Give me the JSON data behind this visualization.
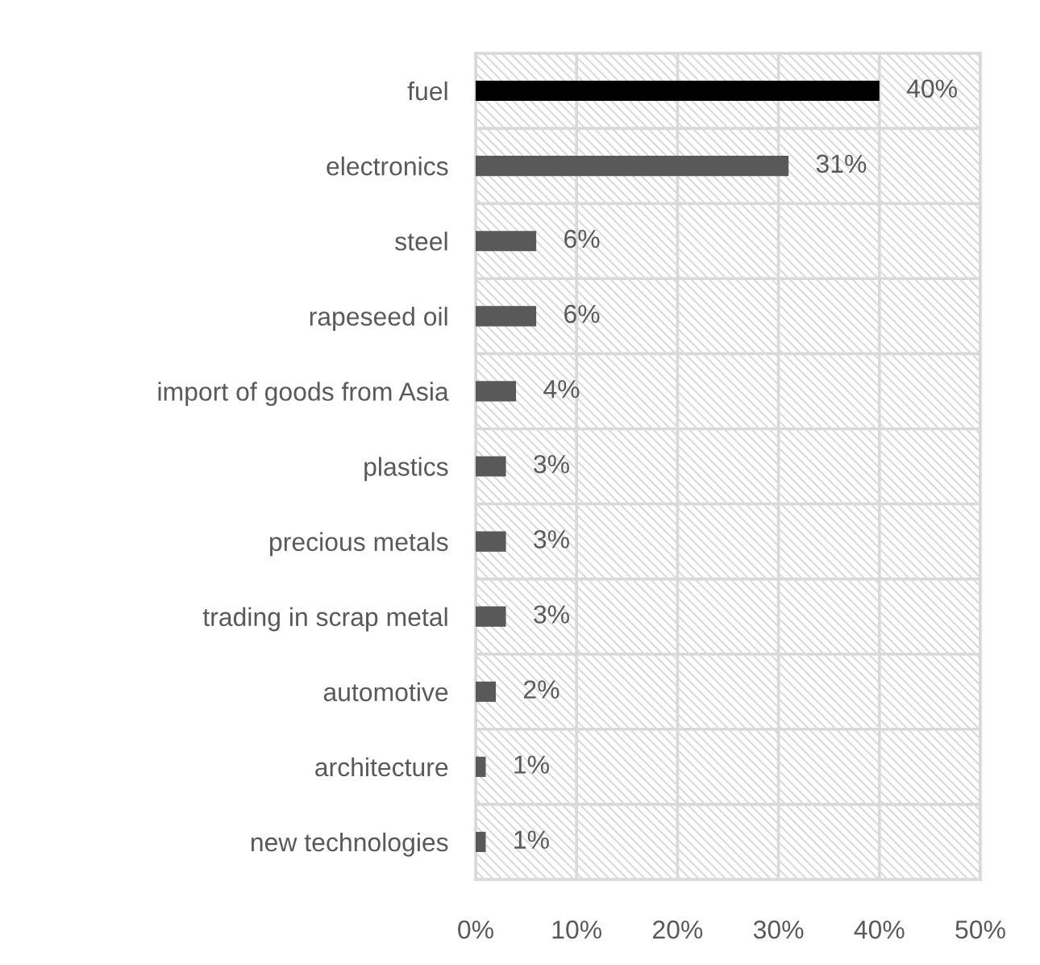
{
  "chart_data": {
    "type": "bar",
    "orientation": "horizontal",
    "categories": [
      "fuel",
      "electronics",
      "steel",
      "rapeseed oil",
      "import of goods from Asia",
      "plastics",
      "precious metals",
      "trading in scrap metal",
      "automotive",
      "architecture",
      "new technologies"
    ],
    "values": [
      40,
      31,
      6,
      6,
      4,
      3,
      3,
      3,
      2,
      1,
      1
    ],
    "colors": [
      "#000000",
      "#595959",
      "#595959",
      "#595959",
      "#595959",
      "#595959",
      "#595959",
      "#595959",
      "#595959",
      "#595959",
      "#595959"
    ],
    "value_labels": [
      "40%",
      "31%",
      "6%",
      "6%",
      "4%",
      "3%",
      "3%",
      "3%",
      "2%",
      "1%",
      "1%"
    ],
    "xlim": [
      0,
      50
    ],
    "xticks": [
      {
        "value": 0,
        "label": "0%"
      },
      {
        "value": 10,
        "label": "10%"
      },
      {
        "value": 20,
        "label": "20%"
      },
      {
        "value": 30,
        "label": "30%"
      },
      {
        "value": 40,
        "label": "40%"
      },
      {
        "value": 50,
        "label": "50%"
      }
    ],
    "grid": true,
    "legend": false
  }
}
